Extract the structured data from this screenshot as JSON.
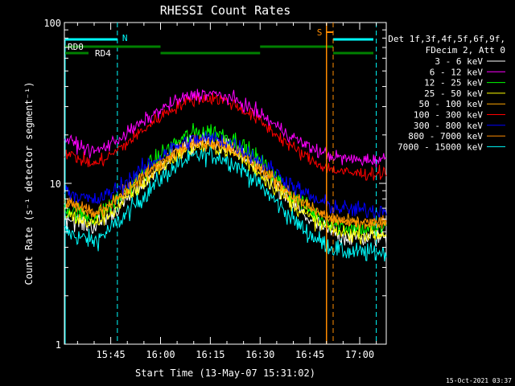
{
  "chart_data": {
    "type": "line",
    "title": "RHESSI Count Rates",
    "xlabel": "Start Time (13-May-07 15:31:02)",
    "ylabel": "Count Rate (s⁻¹ detector segment⁻¹)",
    "yscale": "log",
    "ylim": [
      1,
      100
    ],
    "xlim": [
      "15:31:02",
      "17:08:00"
    ],
    "x_ticks": [
      "15:45",
      "16:00",
      "16:15",
      "16:30",
      "16:45",
      "17:00"
    ],
    "y_ticks": [
      "1",
      "10",
      "100"
    ],
    "grid": false,
    "legend_header": [
      "Det 1f,3f,4f,5f,6f,9f,",
      "FDecim 2, Att 0"
    ],
    "legend_placement": "right",
    "series": [
      {
        "name": "3 - 6 keV",
        "color": "#ffffff",
        "peak": 18,
        "min": 4.6,
        "noise": 0.1
      },
      {
        "name": "6 - 12 keV",
        "color": "#ff00ff",
        "peak": 36,
        "min": 14,
        "noise": 0.07
      },
      {
        "name": "12 - 25 keV",
        "color": "#00ff00",
        "peak": 21,
        "min": 5.2,
        "noise": 0.1
      },
      {
        "name": "25 - 50 keV",
        "color": "#ffff00",
        "peak": 17,
        "min": 4.8,
        "noise": 0.08
      },
      {
        "name": "50 - 100 keV",
        "color": "#ffa500",
        "peak": 18,
        "min": 5.6,
        "noise": 0.08
      },
      {
        "name": "100 - 300 keV",
        "color": "#ff0000",
        "peak": 34,
        "min": 11.5,
        "noise": 0.07
      },
      {
        "name": "300 - 800 keV",
        "color": "#0000ff",
        "peak": 19,
        "min": 6.8,
        "noise": 0.09
      },
      {
        "name": "800 - 7000 keV",
        "color": "#ff8c00",
        "peak": 18,
        "min": 5.7,
        "noise": 0.07
      },
      {
        "name": "7000 - 15000 keV",
        "color": "#00ffff",
        "peak": 15,
        "min": 3.7,
        "noise": 0.1
      }
    ],
    "annotations": {
      "attenuator_labels": [
        "RD0",
        "RD4"
      ],
      "saa_labels": [
        "N",
        "S"
      ]
    }
  },
  "timestamp": "15-Oct-2021 03:37",
  "colors": {
    "background": "#000000",
    "axis": "#ffffff",
    "flag_green": "#008000",
    "flag_cyan": "#00ffff",
    "flag_orange": "#ff8c00"
  }
}
